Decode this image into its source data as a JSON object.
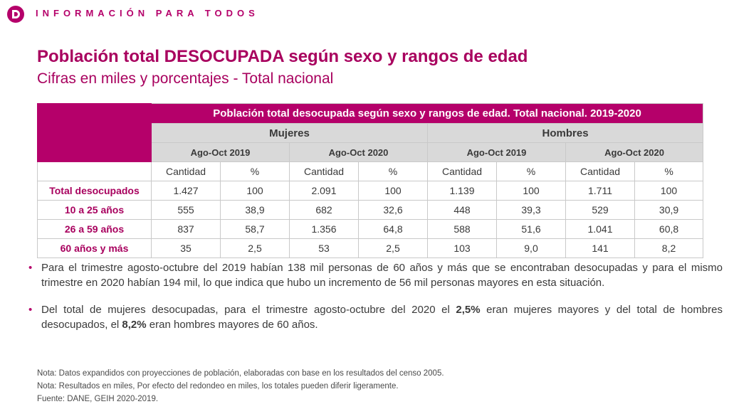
{
  "header": {
    "logo_icon": "dane-logo-icon",
    "tagline": "INFORMACIÓN PARA TODOS",
    "brand_color": "#b5006a"
  },
  "title": "Población total DESOCUPADA según sexo y rangos de edad",
  "subtitle": "Cifras en miles y porcentajes - Total nacional",
  "table": {
    "main_header": "Población total desocupada según sexo y rangos de edad. Total nacional. 2019-2020",
    "groups": [
      {
        "label": "Mujeres",
        "periods": [
          "Ago-Oct 2019",
          "Ago-Oct 2020"
        ]
      },
      {
        "label": "Hombres",
        "periods": [
          "Ago-Oct 2019",
          "Ago-Oct 2020"
        ]
      }
    ],
    "subheaders": [
      "Cantidad",
      "%",
      "Cantidad",
      "%",
      "Cantidad",
      "%",
      "Cantidad",
      "%"
    ],
    "rows": [
      {
        "label": "Total desocupados",
        "values": [
          "1.427",
          "100",
          "2.091",
          "100",
          "1.139",
          "100",
          "1.711",
          "100"
        ]
      },
      {
        "label": "10 a 25 años",
        "values": [
          "555",
          "38,9",
          "682",
          "32,6",
          "448",
          "39,3",
          "529",
          "30,9"
        ]
      },
      {
        "label": "26 a 59 años",
        "values": [
          "837",
          "58,7",
          "1.356",
          "64,8",
          "588",
          "51,6",
          "1.041",
          "60,8"
        ]
      },
      {
        "label": "60 años y más",
        "values": [
          "35",
          "2,5",
          "53",
          "2,5",
          "103",
          "9,0",
          "141",
          "8,2"
        ]
      }
    ]
  },
  "bullets": [
    {
      "parts": [
        {
          "text": "Para el trimestre agosto-octubre del 2019 habían 138 mil personas de 60 años y más que se encontraban desocupadas y para el mismo trimestre en 2020 habían 194 mil, lo que indica que hubo un incremento de 56 mil personas mayores en esta situación.",
          "bold": false
        }
      ]
    },
    {
      "parts": [
        {
          "text": "Del total de mujeres desocupadas, para el trimestre agosto-octubre del 2020 el ",
          "bold": false
        },
        {
          "text": "2,5%",
          "bold": true
        },
        {
          "text": " eran mujeres mayores y del total de hombres desocupados, el ",
          "bold": false
        },
        {
          "text": "8,2%",
          "bold": true
        },
        {
          "text": " eran hombres mayores de 60 años.",
          "bold": false
        }
      ]
    }
  ],
  "notes": [
    "Nota: Datos expandidos con proyecciones de población, elaboradas con base en los resultados del  censo 2005.",
    "Nota: Resultados en miles, Por efecto del redondeo en miles, los totales pueden diferir ligeramente.",
    "Fuente: DANE, GEIH 2020-2019."
  ]
}
